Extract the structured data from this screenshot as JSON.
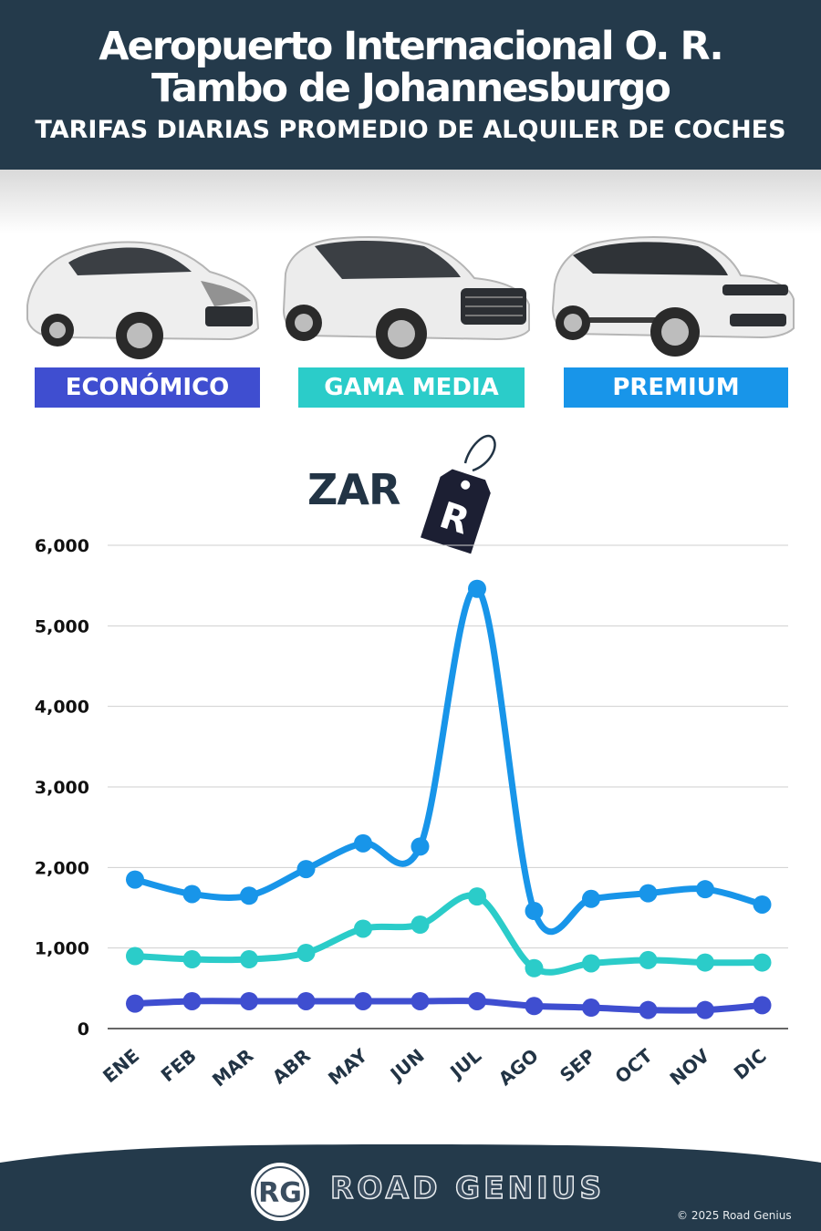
{
  "header": {
    "title_line1": "Aeropuerto Internacional O. R.",
    "title_line2": "Tambo de Johannesburgo",
    "subtitle": "TARIFAS DIARIAS PROMEDIO DE ALQUILER DE COCHES"
  },
  "categories": [
    {
      "label": "ECONÓMICO",
      "color": "#3f4ed0"
    },
    {
      "label": "GAMA MEDIA",
      "color": "#2bccc9"
    },
    {
      "label": "PREMIUM",
      "color": "#1895e9"
    }
  ],
  "currency": {
    "code": "ZAR",
    "symbol": "R"
  },
  "chart_data": {
    "type": "line",
    "x": [
      "ENE",
      "FEB",
      "MAR",
      "ABR",
      "MAY",
      "JUN",
      "JUL",
      "AGO",
      "SEP",
      "OCT",
      "NOV",
      "DIC"
    ],
    "ylim": [
      0,
      6000
    ],
    "yticks": [
      "0",
      "1,000",
      "2,000",
      "3,000",
      "4,000",
      "5,000",
      "6,000"
    ],
    "ytick_values": [
      0,
      1000,
      2000,
      3000,
      4000,
      5000,
      6000
    ],
    "grid": true,
    "legend": "top (category badges)",
    "series": [
      {
        "name": "ECONÓMICO",
        "color": "#3f4ed0",
        "values": [
          310,
          340,
          340,
          340,
          340,
          340,
          340,
          280,
          260,
          230,
          230,
          290
        ]
      },
      {
        "name": "GAMA MEDIA",
        "color": "#2bccc9",
        "values": [
          900,
          860,
          860,
          940,
          1240,
          1290,
          1640,
          750,
          810,
          850,
          820,
          820
        ]
      },
      {
        "name": "PREMIUM",
        "color": "#1895e9",
        "values": [
          1850,
          1670,
          1650,
          1980,
          2300,
          2260,
          5460,
          1460,
          1610,
          1680,
          1730,
          1540
        ]
      }
    ]
  },
  "footer": {
    "brand_initials": "RG",
    "brand_name": "ROAD GENIUS",
    "copyright": "© 2025 Road Genius"
  }
}
